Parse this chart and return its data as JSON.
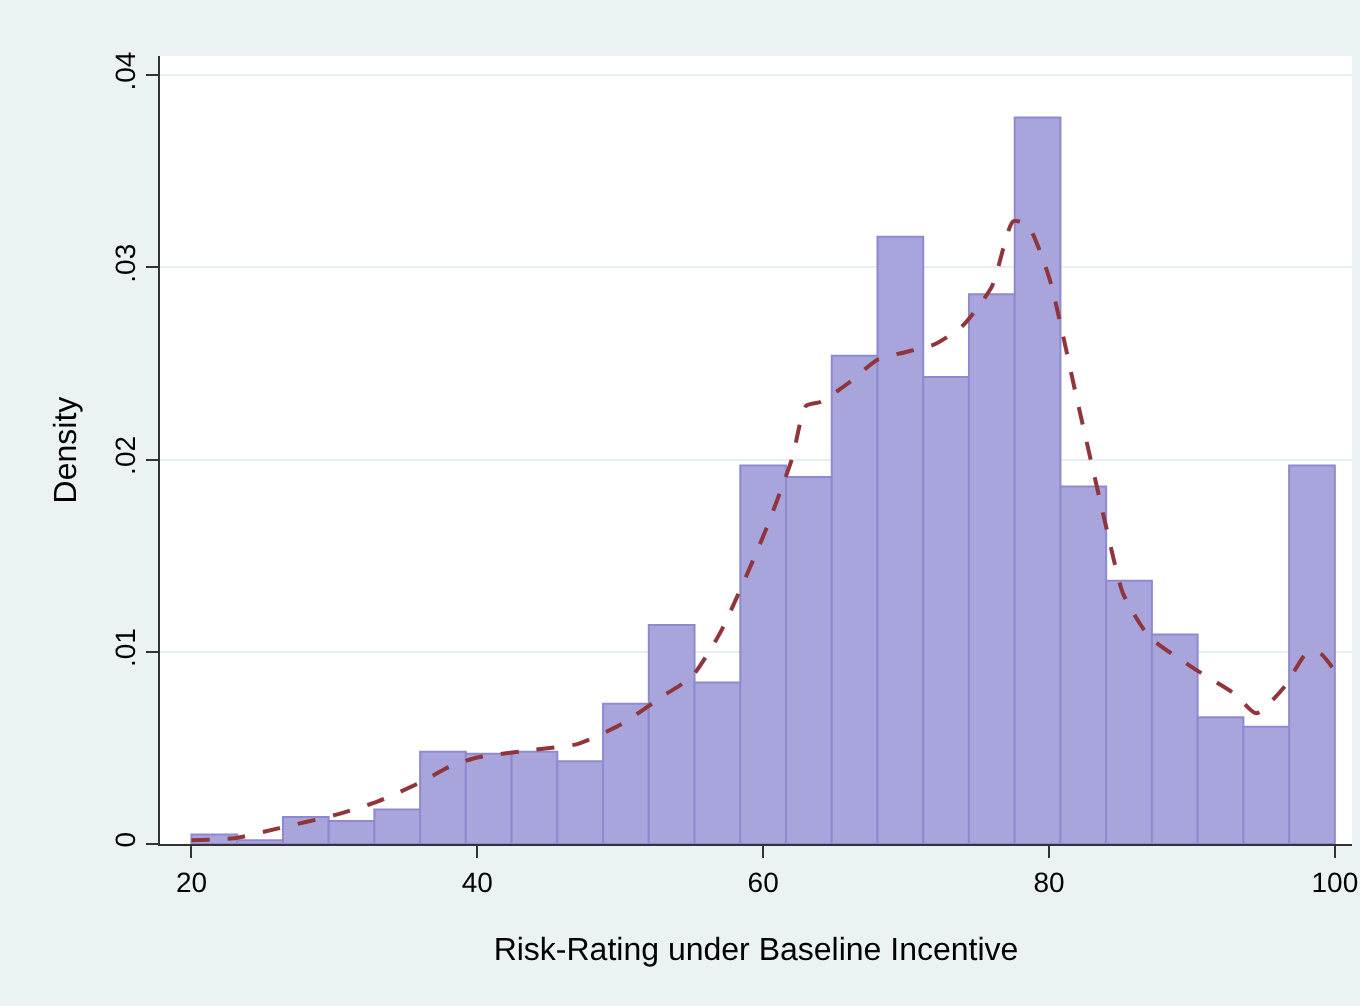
{
  "chart_data": {
    "type": "histogram",
    "xlabel": "Risk-Rating under Baseline Incentive",
    "ylabel": "Density",
    "bins": [
      20,
      23.2,
      26.4,
      29.6,
      32.8,
      36,
      39.2,
      42.4,
      45.6,
      48.8,
      52,
      55.2,
      58.4,
      61.6,
      64.8,
      68,
      71.2,
      74.4,
      77.6,
      80.8,
      84,
      87.2,
      90.4,
      93.6,
      96.8,
      100
    ],
    "values": [
      0.0005,
      0.0002,
      0.0014,
      0.0012,
      0.0018,
      0.0048,
      0.0047,
      0.0048,
      0.0043,
      0.0073,
      0.0114,
      0.0084,
      0.0197,
      0.0191,
      0.0254,
      0.0316,
      0.0243,
      0.0286,
      0.0378,
      0.0186,
      0.0137,
      0.0109,
      0.0066,
      0.0061,
      0.0197
    ],
    "color": "#a8a4dc",
    "series": [
      {
        "type": "line",
        "color": "#90353b",
        "line_style": "dashed",
        "x": [
          20,
          23,
          26,
          30,
          33,
          36,
          38,
          40,
          44,
          47,
          50,
          53,
          55,
          57,
          60,
          62,
          63,
          64,
          66,
          68,
          70,
          72,
          74,
          76,
          77.5,
          78.5,
          80,
          82,
          84,
          85.2,
          87,
          90,
          93,
          94.5,
          96.5,
          98,
          99,
          100
        ],
        "values": [
          0.0002,
          0.0003,
          0.0008,
          0.0015,
          0.0022,
          0.0032,
          0.004,
          0.0045,
          0.0049,
          0.0052,
          0.0062,
          0.0077,
          0.0087,
          0.011,
          0.016,
          0.02,
          0.0228,
          0.023,
          0.024,
          0.0252,
          0.0256,
          0.026,
          0.027,
          0.029,
          0.0324,
          0.0322,
          0.0295,
          0.023,
          0.0165,
          0.013,
          0.0108,
          0.0092,
          0.0078,
          0.0068,
          0.0082,
          0.0099,
          0.0099,
          0.009
        ]
      }
    ],
    "xlim": [
      17.8,
      101.2
    ],
    "xticks": [
      20,
      40,
      60,
      80,
      100
    ],
    "ylim": [
      0,
      0.041
    ],
    "yticks": [
      0,
      {
        "value": 0.01,
        "label": ".01"
      },
      {
        "value": 0.02,
        "label": ".02"
      },
      {
        "value": 0.03,
        "label": ".03"
      },
      {
        "value": 0.04,
        "label": ".04"
      }
    ],
    "grid": "y"
  }
}
